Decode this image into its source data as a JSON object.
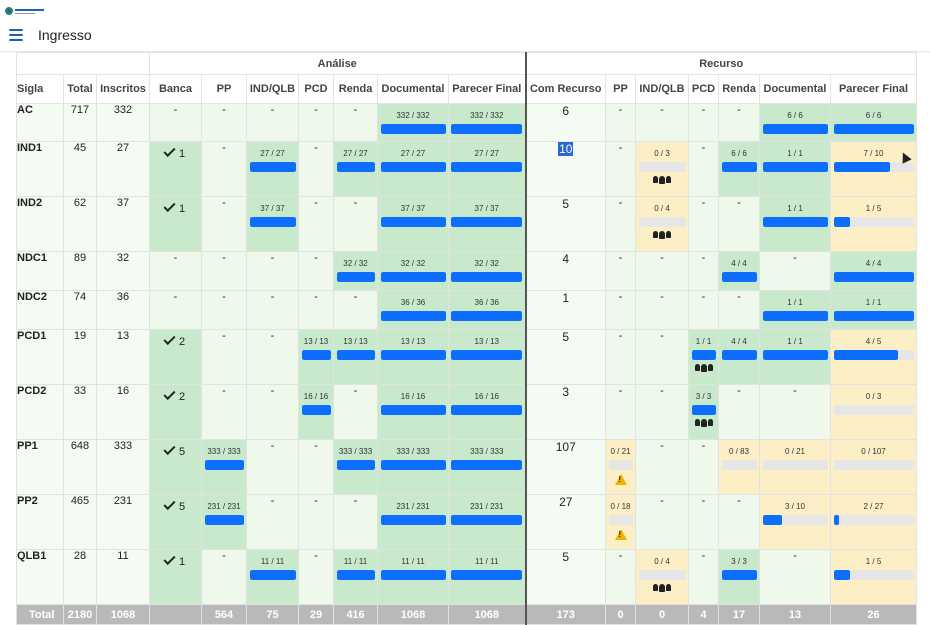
{
  "header": {
    "logo_text": "INGRESSO",
    "title": "Ingresso"
  },
  "groups": {
    "analise": "Análise",
    "recurso": "Recurso"
  },
  "columns": {
    "sigla": "Sigla",
    "total": "Total",
    "inscritos": "Inscritos",
    "analise": [
      "Banca",
      "PP",
      "IND/QLB",
      "PCD",
      "Renda",
      "Documental",
      "Parecer Final"
    ],
    "recurso": [
      "Com Recurso",
      "PP",
      "IND/QLB",
      "PCD",
      "Renda",
      "Documental",
      "Parecer Final"
    ]
  },
  "rows": [
    {
      "sigla": "AC",
      "total": "717",
      "inscritos": "332",
      "analise": [
        {
          "t": "-"
        },
        {
          "t": "-"
        },
        {
          "t": "-"
        },
        {
          "t": "-"
        },
        {
          "t": "-"
        },
        {
          "f": "332 / 332",
          "p": 1,
          "c": "green"
        },
        {
          "f": "332 / 332",
          "p": 1,
          "c": "green"
        }
      ],
      "recurso": [
        {
          "t": "6"
        },
        {
          "t": "-"
        },
        {
          "t": "-"
        },
        {
          "t": "-"
        },
        {
          "t": "-"
        },
        {
          "f": "6 / 6",
          "p": 1,
          "c": "green"
        },
        {
          "f": "6 / 6",
          "p": 1,
          "c": "green"
        }
      ]
    },
    {
      "sigla": "IND1",
      "total": "45",
      "inscritos": "27",
      "analise": [
        {
          "k": "1"
        },
        {
          "t": "-"
        },
        {
          "f": "27 / 27",
          "p": 1,
          "c": "green"
        },
        {
          "t": "-"
        },
        {
          "f": "27 / 27",
          "p": 1,
          "c": "green"
        },
        {
          "f": "27 / 27",
          "p": 1,
          "c": "green"
        },
        {
          "f": "27 / 27",
          "p": 1,
          "c": "green"
        }
      ],
      "recurso": [
        {
          "t": "10",
          "hl": true
        },
        {
          "t": "-"
        },
        {
          "f": "0 / 3",
          "p": 0,
          "c": "yellow",
          "g": true
        },
        {
          "t": "-"
        },
        {
          "f": "6 / 6",
          "p": 1,
          "c": "green"
        },
        {
          "f": "1 / 1",
          "p": 1,
          "c": "green"
        },
        {
          "f": "7 / 10",
          "p": 0.7,
          "c": "yellow",
          "cur": true
        }
      ]
    },
    {
      "sigla": "IND2",
      "total": "62",
      "inscritos": "37",
      "analise": [
        {
          "k": "1"
        },
        {
          "t": "-"
        },
        {
          "f": "37 / 37",
          "p": 1,
          "c": "green"
        },
        {
          "t": "-"
        },
        {
          "t": "-"
        },
        {
          "f": "37 / 37",
          "p": 1,
          "c": "green"
        },
        {
          "f": "37 / 37",
          "p": 1,
          "c": "green"
        }
      ],
      "recurso": [
        {
          "t": "5"
        },
        {
          "t": "-"
        },
        {
          "f": "0 / 4",
          "p": 0,
          "c": "yellow",
          "g": true
        },
        {
          "t": "-"
        },
        {
          "t": "-"
        },
        {
          "f": "1 / 1",
          "p": 1,
          "c": "green"
        },
        {
          "f": "1 / 5",
          "p": 0.2,
          "c": "yellow"
        }
      ]
    },
    {
      "sigla": "NDC1",
      "total": "89",
      "inscritos": "32",
      "analise": [
        {
          "t": "-"
        },
        {
          "t": "-"
        },
        {
          "t": "-"
        },
        {
          "t": "-"
        },
        {
          "f": "32 / 32",
          "p": 1,
          "c": "green"
        },
        {
          "f": "32 / 32",
          "p": 1,
          "c": "green"
        },
        {
          "f": "32 / 32",
          "p": 1,
          "c": "green"
        }
      ],
      "recurso": [
        {
          "t": "4"
        },
        {
          "t": "-"
        },
        {
          "t": "-"
        },
        {
          "t": "-"
        },
        {
          "f": "4 / 4",
          "p": 1,
          "c": "green"
        },
        {
          "t": "-"
        },
        {
          "f": "4 / 4",
          "p": 1,
          "c": "green"
        }
      ]
    },
    {
      "sigla": "NDC2",
      "total": "74",
      "inscritos": "36",
      "analise": [
        {
          "t": "-"
        },
        {
          "t": "-"
        },
        {
          "t": "-"
        },
        {
          "t": "-"
        },
        {
          "t": "-"
        },
        {
          "f": "36 / 36",
          "p": 1,
          "c": "green"
        },
        {
          "f": "36 / 36",
          "p": 1,
          "c": "green"
        }
      ],
      "recurso": [
        {
          "t": "1"
        },
        {
          "t": "-"
        },
        {
          "t": "-"
        },
        {
          "t": "-"
        },
        {
          "t": "-"
        },
        {
          "f": "1 / 1",
          "p": 1,
          "c": "green"
        },
        {
          "f": "1 / 1",
          "p": 1,
          "c": "green"
        }
      ]
    },
    {
      "sigla": "PCD1",
      "total": "19",
      "inscritos": "13",
      "analise": [
        {
          "k": "2"
        },
        {
          "t": "-"
        },
        {
          "t": "-"
        },
        {
          "f": "13 / 13",
          "p": 1,
          "c": "green"
        },
        {
          "f": "13 / 13",
          "p": 1,
          "c": "green"
        },
        {
          "f": "13 / 13",
          "p": 1,
          "c": "green"
        },
        {
          "f": "13 / 13",
          "p": 1,
          "c": "green"
        }
      ],
      "recurso": [
        {
          "t": "5"
        },
        {
          "t": "-"
        },
        {
          "t": "-"
        },
        {
          "f": "1 / 1",
          "p": 1,
          "c": "green",
          "g": true
        },
        {
          "f": "4 / 4",
          "p": 1,
          "c": "green"
        },
        {
          "f": "1 / 1",
          "p": 1,
          "c": "green"
        },
        {
          "f": "4 / 5",
          "p": 0.8,
          "c": "yellow"
        }
      ]
    },
    {
      "sigla": "PCD2",
      "total": "33",
      "inscritos": "16",
      "analise": [
        {
          "k": "2"
        },
        {
          "t": "-"
        },
        {
          "t": "-"
        },
        {
          "f": "16 / 16",
          "p": 1,
          "c": "green"
        },
        {
          "t": "-"
        },
        {
          "f": "16 / 16",
          "p": 1,
          "c": "green"
        },
        {
          "f": "16 / 16",
          "p": 1,
          "c": "green"
        }
      ],
      "recurso": [
        {
          "t": "3"
        },
        {
          "t": "-"
        },
        {
          "t": "-"
        },
        {
          "f": "3 / 3",
          "p": 1,
          "c": "green",
          "g": true
        },
        {
          "t": "-"
        },
        {
          "t": "-"
        },
        {
          "f": "0 / 3",
          "p": 0,
          "c": "yellow"
        }
      ]
    },
    {
      "sigla": "PP1",
      "total": "648",
      "inscritos": "333",
      "analise": [
        {
          "k": "5"
        },
        {
          "f": "333 / 333",
          "p": 1,
          "c": "green"
        },
        {
          "t": "-"
        },
        {
          "t": "-"
        },
        {
          "f": "333 / 333",
          "p": 1,
          "c": "green"
        },
        {
          "f": "333 / 333",
          "p": 1,
          "c": "green"
        },
        {
          "f": "333 / 333",
          "p": 1,
          "c": "green"
        }
      ],
      "recurso": [
        {
          "t": "107"
        },
        {
          "f": "0 / 21",
          "p": 0,
          "c": "yellow",
          "w": true
        },
        {
          "t": "-"
        },
        {
          "t": "-"
        },
        {
          "f": "0 / 83",
          "p": 0,
          "c": "yellow"
        },
        {
          "f": "0 / 21",
          "p": 0,
          "c": "yellow"
        },
        {
          "f": "0 / 107",
          "p": 0,
          "c": "yellow"
        }
      ]
    },
    {
      "sigla": "PP2",
      "total": "465",
      "inscritos": "231",
      "analise": [
        {
          "k": "5"
        },
        {
          "f": "231 / 231",
          "p": 1,
          "c": "green"
        },
        {
          "t": "-"
        },
        {
          "t": "-"
        },
        {
          "t": "-"
        },
        {
          "f": "231 / 231",
          "p": 1,
          "c": "green"
        },
        {
          "f": "231 / 231",
          "p": 1,
          "c": "green"
        }
      ],
      "recurso": [
        {
          "t": "27"
        },
        {
          "f": "0 / 18",
          "p": 0,
          "c": "yellow",
          "w": true
        },
        {
          "t": "-"
        },
        {
          "t": "-"
        },
        {
          "t": "-"
        },
        {
          "f": "3 / 10",
          "p": 0.3,
          "c": "yellow"
        },
        {
          "f": "2 / 27",
          "p": 0.07,
          "c": "yellow"
        }
      ]
    },
    {
      "sigla": "QLB1",
      "total": "28",
      "inscritos": "11",
      "analise": [
        {
          "k": "1"
        },
        {
          "t": "-"
        },
        {
          "f": "11 / 11",
          "p": 1,
          "c": "green"
        },
        {
          "t": "-"
        },
        {
          "f": "11 / 11",
          "p": 1,
          "c": "green"
        },
        {
          "f": "11 / 11",
          "p": 1,
          "c": "green"
        },
        {
          "f": "11 / 11",
          "p": 1,
          "c": "green"
        }
      ],
      "recurso": [
        {
          "t": "5"
        },
        {
          "t": "-"
        },
        {
          "f": "0 / 4",
          "p": 0,
          "c": "yellow",
          "g": true
        },
        {
          "t": "-"
        },
        {
          "f": "3 / 3",
          "p": 1,
          "c": "green"
        },
        {
          "t": "-"
        },
        {
          "f": "1 / 5",
          "p": 0.2,
          "c": "yellow"
        }
      ]
    }
  ],
  "totals": {
    "label": "Total",
    "values": [
      "2180",
      "1068",
      "",
      "564",
      "75",
      "29",
      "416",
      "1068",
      "1068",
      "173",
      "0",
      "0",
      "4",
      "17",
      "13",
      "26"
    ]
  },
  "colors": {
    "bar": "#0d6efd",
    "green": "#c8e9cc",
    "yellow": "#fcefc6",
    "warning": "#f0b400"
  }
}
